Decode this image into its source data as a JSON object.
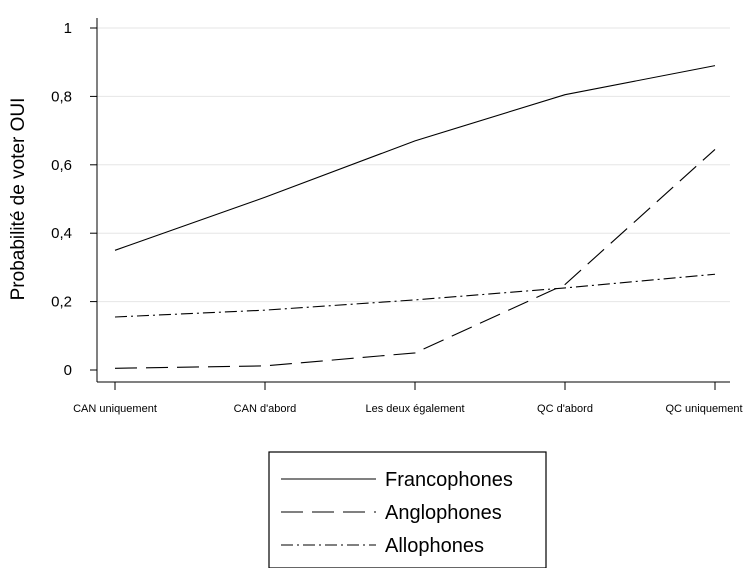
{
  "chart_data": {
    "type": "line",
    "ylabel": "Probabilité de voter OUI",
    "xlabel": "",
    "categories": [
      "CAN uniquement",
      "CAN d'abord",
      "Les deux également",
      "QC d'abord",
      "QC uniquement"
    ],
    "ylim": [
      0,
      1.02
    ],
    "yticks": [
      0,
      0.2,
      0.4,
      0.6,
      0.8,
      1
    ],
    "ytick_labels": [
      "0",
      "0,2",
      "0,4",
      "0,6",
      "0,8",
      "1"
    ],
    "grid": true,
    "legend_position": "bottom-center",
    "series": [
      {
        "name": "Francophones",
        "dash": "solid",
        "values": [
          0.35,
          0.505,
          0.67,
          0.805,
          0.89
        ]
      },
      {
        "name": "Anglophones",
        "dash": "long-dash",
        "values": [
          0.005,
          0.012,
          0.05,
          0.25,
          0.645
        ]
      },
      {
        "name": "Allophones",
        "dash": "dash-dot",
        "values": [
          0.155,
          0.175,
          0.205,
          0.24,
          0.28
        ]
      }
    ]
  }
}
